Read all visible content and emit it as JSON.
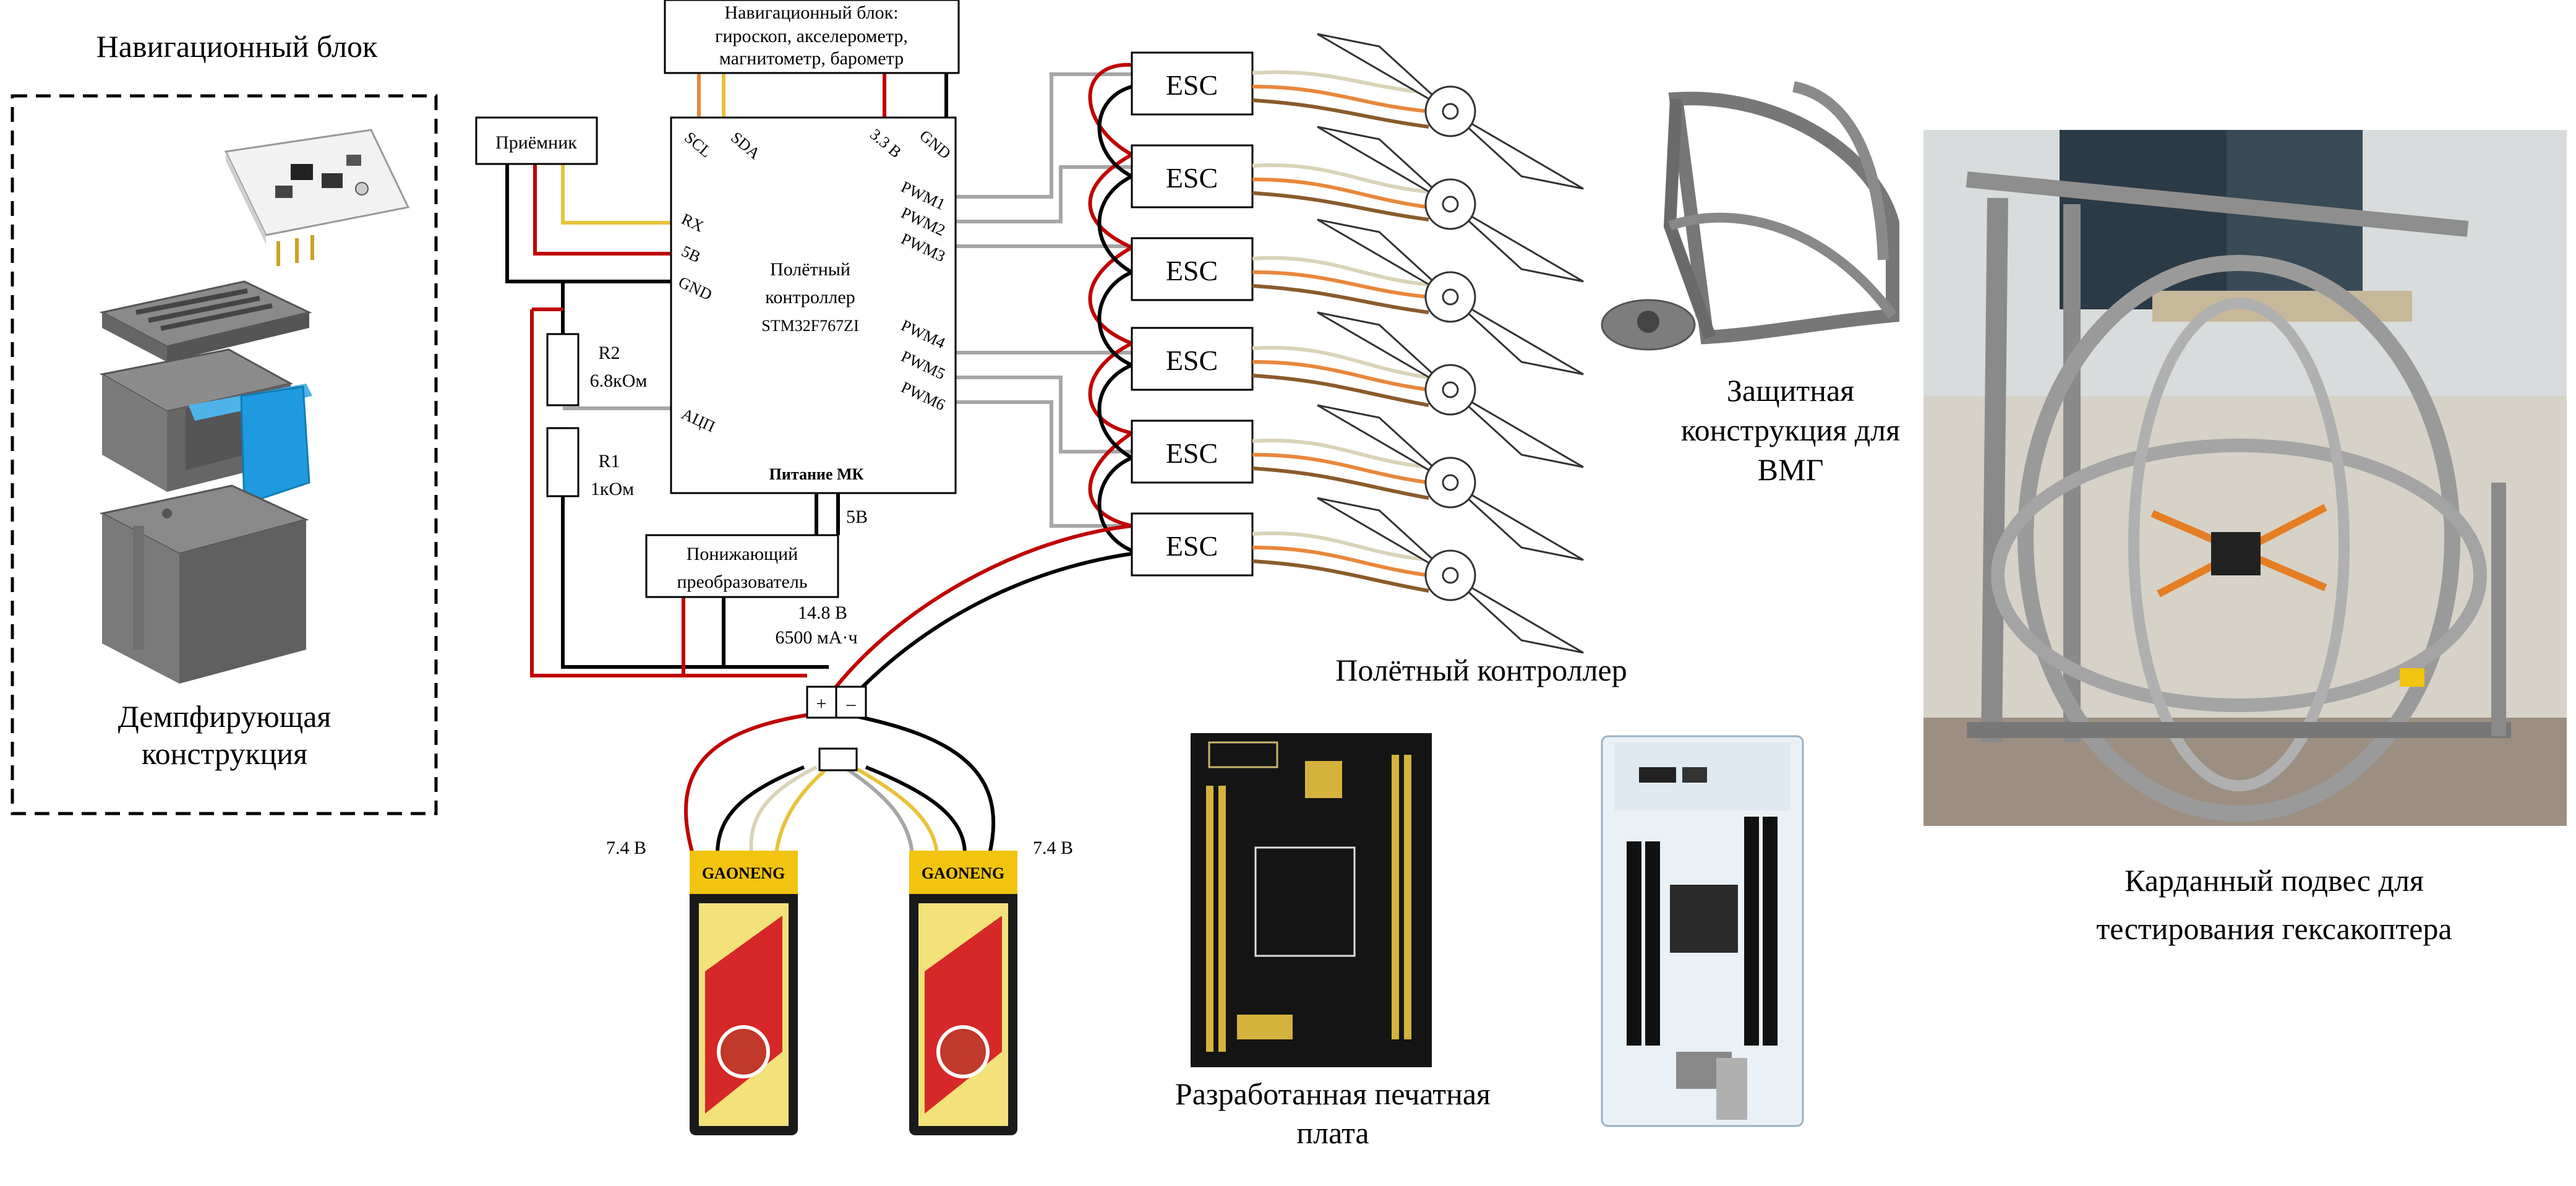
{
  "captions": {
    "nav_block": "Навигационный блок",
    "damping_line1": "Демпфирующая",
    "damping_line2": "конструкция",
    "protect_line1": "Защитная",
    "protect_line2": "конструкция для",
    "protect_line3": "ВМГ",
    "flight_controller": "Полётный контроллер",
    "pcb_line1": "Разработанная печатная",
    "pcb_line2": "плата",
    "gimbal_line1": "Карданный подвес для",
    "gimbal_line2": "тестирования гексакоптера"
  },
  "schematic": {
    "nav_box_line1": "Навигационный блок:",
    "nav_box_line2": "гироскоп, акселерометр,",
    "nav_box_line3": "магнитометр, барометр",
    "receiver": "Приёмник",
    "fc_line1": "Полётный",
    "fc_line2": "контроллер",
    "fc_model": "STM32F767ZI",
    "fc_power": "Питание МК",
    "pins": {
      "scl": "SCL",
      "sda": "SDA",
      "v33": "3.3 В",
      "gnd_top": "GND",
      "rx": "RX",
      "v5": "5В",
      "gnd_left": "GND",
      "adc": "АЦП",
      "pwm": [
        "PWM1",
        "PWM2",
        "PWM3",
        "PWM4",
        "PWM5",
        "PWM6"
      ]
    },
    "r2_name": "R2",
    "r2_value": "6.8кОм",
    "r1_name": "R1",
    "r1_value": "1кОм",
    "converter_line1": "Понижающий",
    "converter_line2": "преобразователь",
    "v5_label": "5В",
    "battery_voltage": "14.8 В",
    "battery_capacity": "6500 мА·ч",
    "plus": "+",
    "minus": "–",
    "esc_label": "ESC",
    "cell_left": "7.4 В",
    "cell_right": "7.4 В",
    "battery_brand": "GAONENG"
  },
  "colors": {
    "red_wire": "#c00000",
    "black_wire": "#000000",
    "gray_wire": "#a6a6a6",
    "yellow_wire": "#e7c23a",
    "orange_wire": "#e8873a",
    "blue_part": "#1e9be0",
    "gray_part": "#6b6b6b"
  }
}
